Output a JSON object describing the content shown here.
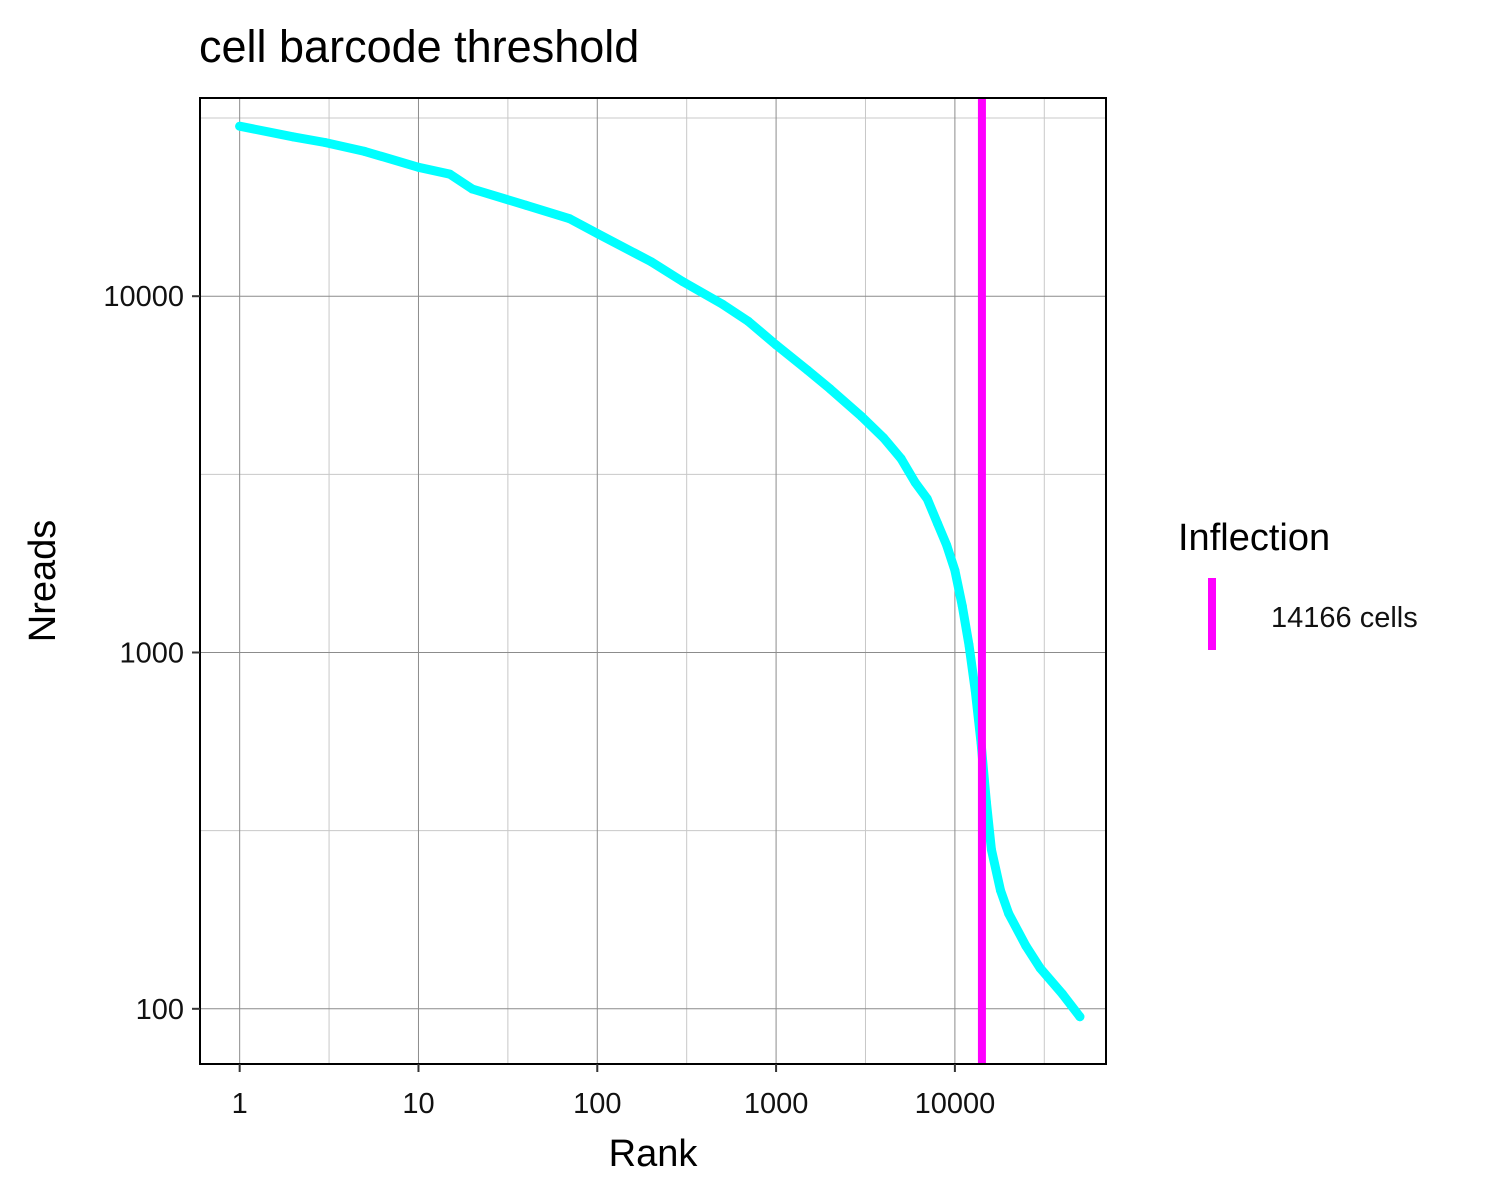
{
  "chart_data": {
    "type": "line",
    "title": "cell barcode threshold",
    "xlabel": "Rank",
    "ylabel": "Nreads",
    "x_scale": "log10",
    "y_scale": "log10",
    "xlim": [
      0.6,
      70000
    ],
    "ylim": [
      70,
      36000
    ],
    "x_ticks": [
      {
        "value": 1,
        "label": "1"
      },
      {
        "value": 10,
        "label": "10"
      },
      {
        "value": 100,
        "label": "100"
      },
      {
        "value": 1000,
        "label": "1000"
      },
      {
        "value": 10000,
        "label": "10000"
      }
    ],
    "y_ticks": [
      {
        "value": 100,
        "label": "100"
      },
      {
        "value": 1000,
        "label": "1000"
      },
      {
        "value": 10000,
        "label": "10000"
      }
    ],
    "grid": true,
    "series": [
      {
        "color": "#00FFFF",
        "x": [
          1,
          2,
          3,
          5,
          10,
          15,
          20,
          40,
          70,
          100,
          200,
          300,
          500,
          700,
          1000,
          1500,
          2000,
          3000,
          4000,
          5000,
          6000,
          7000,
          8000,
          9000,
          10000,
          11000,
          12000,
          13000,
          14000,
          15000,
          16000,
          18000,
          20000,
          25000,
          30000,
          40000,
          50000
        ],
        "y": [
          30000,
          28000,
          27000,
          25500,
          23000,
          22000,
          20000,
          18000,
          16500,
          15000,
          12500,
          11000,
          9500,
          8500,
          7300,
          6200,
          5500,
          4600,
          4000,
          3500,
          3000,
          2700,
          2300,
          2000,
          1700,
          1350,
          1050,
          780,
          560,
          380,
          280,
          215,
          185,
          150,
          130,
          110,
          95
        ]
      }
    ],
    "threshold": {
      "x": 14166,
      "color": "#FF00FF"
    },
    "legend": {
      "title": "Inflection",
      "position": "right",
      "entries": [
        {
          "label": "14166 cells",
          "color": "#FF00FF"
        }
      ]
    }
  }
}
